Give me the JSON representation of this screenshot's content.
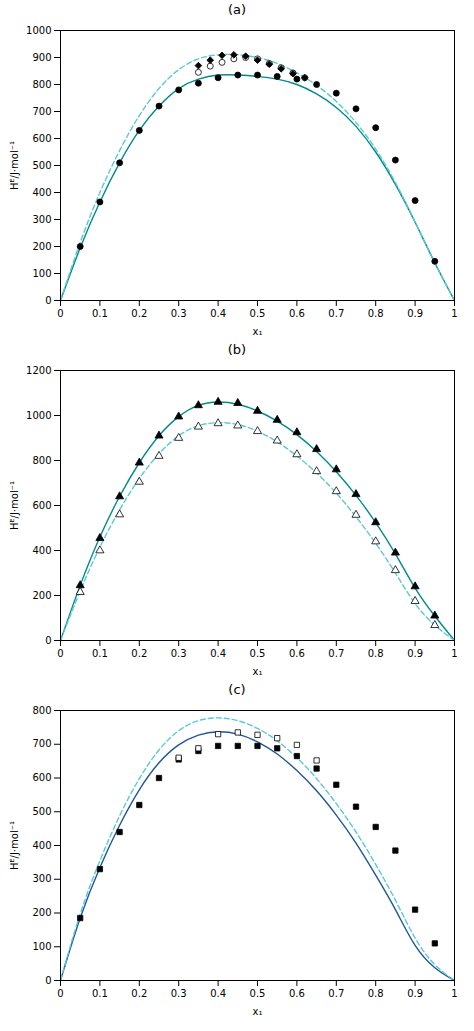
{
  "chart_data": [
    {
      "type": "line",
      "title": "(a)",
      "x_label": "x₁",
      "y_label": "Hᴱ/J·mol⁻¹",
      "xlim": [
        0,
        1
      ],
      "xticks": [
        0,
        0.1,
        0.2,
        0.3,
        0.4,
        0.5,
        0.6,
        0.7,
        0.8,
        0.9,
        1
      ],
      "ylim": [
        0,
        1000
      ],
      "yticks": [
        0,
        100,
        200,
        300,
        400,
        500,
        600,
        700,
        800,
        900,
        1000
      ],
      "series": [
        {
          "type": "line",
          "color": "#008B8B",
          "line_style": "solid",
          "x": [
            0,
            0.05,
            0.1,
            0.15,
            0.2,
            0.25,
            0.3,
            0.35,
            0.4,
            0.45,
            0.5,
            0.55,
            0.6,
            0.65,
            0.7,
            0.75,
            0.8,
            0.85,
            0.9,
            0.95,
            1.0
          ],
          "values": [
            0,
            195,
            365,
            510,
            630,
            720,
            785,
            820,
            835,
            835,
            830,
            820,
            800,
            765,
            715,
            645,
            550,
            430,
            290,
            140,
            0
          ]
        },
        {
          "type": "line",
          "color": "#5BC8D8",
          "line_style": "dashed",
          "x": [
            0,
            0.05,
            0.1,
            0.15,
            0.2,
            0.25,
            0.3,
            0.35,
            0.4,
            0.45,
            0.5,
            0.55,
            0.6,
            0.65,
            0.7,
            0.75,
            0.8,
            0.85,
            0.9,
            0.95,
            1.0
          ],
          "values": [
            0,
            215,
            400,
            555,
            685,
            785,
            855,
            895,
            910,
            910,
            900,
            878,
            843,
            797,
            737,
            659,
            561,
            437,
            291,
            139,
            0
          ]
        },
        {
          "type": "scatter",
          "color": "black",
          "marker": "circle",
          "x": [
            0.05,
            0.1,
            0.15,
            0.2,
            0.25,
            0.3,
            0.35,
            0.4,
            0.45,
            0.5,
            0.55,
            0.6,
            0.65,
            0.7,
            0.75,
            0.8,
            0.85,
            0.9,
            0.95
          ],
          "values": [
            200,
            365,
            510,
            630,
            720,
            780,
            805,
            825,
            835,
            835,
            830,
            820,
            800,
            768,
            710,
            640,
            520,
            370,
            145
          ]
        },
        {
          "type": "scatter",
          "color": "black",
          "marker": "circle-open",
          "x": [
            0.35,
            0.38,
            0.41,
            0.44,
            0.47,
            0.5,
            0.53,
            0.56,
            0.59,
            0.62
          ],
          "values": [
            845,
            868,
            882,
            895,
            900,
            895,
            878,
            862,
            843,
            825
          ]
        },
        {
          "type": "scatter",
          "color": "black",
          "marker": "diamond",
          "x": [
            0.35,
            0.38,
            0.41,
            0.44,
            0.47,
            0.5,
            0.53,
            0.56,
            0.59,
            0.62
          ],
          "values": [
            870,
            890,
            908,
            910,
            905,
            890,
            875,
            858,
            840,
            825
          ]
        }
      ]
    },
    {
      "type": "line",
      "title": "(b)",
      "x_label": "x₁",
      "y_label": "Hᴱ/J·mol⁻¹",
      "xlim": [
        0,
        1
      ],
      "xticks": [
        0,
        0.1,
        0.2,
        0.3,
        0.4,
        0.5,
        0.6,
        0.7,
        0.8,
        0.9,
        1
      ],
      "ylim": [
        0,
        1200
      ],
      "yticks": [
        0,
        200,
        400,
        600,
        800,
        1000,
        1200
      ],
      "series": [
        {
          "type": "line",
          "color": "#008B8B",
          "line_style": "solid",
          "x": [
            0,
            0.05,
            0.1,
            0.15,
            0.2,
            0.25,
            0.3,
            0.35,
            0.4,
            0.45,
            0.5,
            0.55,
            0.6,
            0.65,
            0.7,
            0.75,
            0.8,
            0.85,
            0.9,
            0.95,
            1.0
          ],
          "values": [
            0,
            245,
            460,
            640,
            790,
            910,
            995,
            1045,
            1060,
            1050,
            1020,
            975,
            915,
            840,
            750,
            645,
            524,
            385,
            233,
            109,
            0
          ]
        },
        {
          "type": "line",
          "color": "#5BC8D8",
          "line_style": "dashed",
          "x": [
            0,
            0.05,
            0.1,
            0.15,
            0.2,
            0.25,
            0.3,
            0.35,
            0.4,
            0.45,
            0.5,
            0.55,
            0.6,
            0.65,
            0.7,
            0.75,
            0.8,
            0.85,
            0.9,
            0.95,
            1.0
          ],
          "values": [
            0,
            220,
            415,
            580,
            720,
            830,
            910,
            955,
            968,
            960,
            930,
            883,
            820,
            745,
            655,
            550,
            432,
            300,
            164,
            68,
            0
          ]
        },
        {
          "type": "scatter",
          "color": "black",
          "marker": "triangle",
          "x": [
            0.05,
            0.1,
            0.15,
            0.2,
            0.25,
            0.3,
            0.35,
            0.4,
            0.45,
            0.5,
            0.55,
            0.6,
            0.65,
            0.7,
            0.75,
            0.8,
            0.85,
            0.9,
            0.95
          ],
          "values": [
            245,
            455,
            640,
            790,
            910,
            995,
            1045,
            1060,
            1055,
            1020,
            980,
            925,
            850,
            760,
            650,
            525,
            390,
            240,
            110
          ]
        },
        {
          "type": "scatter",
          "color": "black",
          "marker": "triangle-open",
          "x": [
            0.05,
            0.1,
            0.15,
            0.2,
            0.25,
            0.3,
            0.35,
            0.4,
            0.45,
            0.5,
            0.55,
            0.6,
            0.65,
            0.7,
            0.75,
            0.8,
            0.85,
            0.9,
            0.95
          ],
          "values": [
            215,
            400,
            560,
            705,
            820,
            900,
            950,
            965,
            955,
            930,
            888,
            827,
            752,
            663,
            558,
            440,
            312,
            175,
            68
          ]
        }
      ]
    },
    {
      "type": "line",
      "title": "(c)",
      "x_label": "x₁",
      "y_label": "Hᴱ/J·mol⁻¹",
      "xlim": [
        0,
        1
      ],
      "xticks": [
        0,
        0.1,
        0.2,
        0.3,
        0.4,
        0.5,
        0.6,
        0.7,
        0.8,
        0.9,
        1
      ],
      "ylim": [
        0,
        800
      ],
      "yticks": [
        0,
        100,
        200,
        300,
        400,
        500,
        600,
        700,
        800
      ],
      "series": [
        {
          "type": "line",
          "color": "#1E5799",
          "line_style": "solid",
          "x": [
            0,
            0.05,
            0.1,
            0.15,
            0.2,
            0.25,
            0.3,
            0.35,
            0.4,
            0.45,
            0.5,
            0.55,
            0.6,
            0.65,
            0.7,
            0.75,
            0.8,
            0.85,
            0.9,
            0.95,
            1.0
          ],
          "values": [
            0,
            185,
            335,
            460,
            565,
            645,
            698,
            727,
            737,
            730,
            707,
            671,
            622,
            562,
            490,
            407,
            312,
            210,
            104,
            38,
            0
          ]
        },
        {
          "type": "line",
          "color": "#5BC8D8",
          "line_style": "dashed",
          "x": [
            0,
            0.05,
            0.1,
            0.15,
            0.2,
            0.25,
            0.3,
            0.35,
            0.4,
            0.45,
            0.5,
            0.55,
            0.6,
            0.65,
            0.7,
            0.75,
            0.8,
            0.85,
            0.9,
            0.95,
            1.0
          ],
          "values": [
            0,
            197,
            355,
            488,
            598,
            683,
            740,
            770,
            778,
            770,
            747,
            710,
            660,
            598,
            524,
            440,
            344,
            238,
            126,
            47,
            0
          ]
        },
        {
          "type": "scatter",
          "color": "black",
          "marker": "square",
          "x": [
            0.05,
            0.1,
            0.15,
            0.2,
            0.25,
            0.3,
            0.35,
            0.4,
            0.45,
            0.5,
            0.55,
            0.6,
            0.65,
            0.7,
            0.75,
            0.8,
            0.85,
            0.9,
            0.95
          ],
          "values": [
            185,
            330,
            440,
            520,
            600,
            655,
            680,
            695,
            695,
            695,
            688,
            665,
            628,
            580,
            515,
            455,
            385,
            210,
            110
          ]
        },
        {
          "type": "scatter",
          "color": "black",
          "marker": "square-open",
          "x": [
            0.3,
            0.35,
            0.4,
            0.45,
            0.5,
            0.55,
            0.6,
            0.65
          ],
          "values": [
            660,
            688,
            730,
            735,
            728,
            718,
            698,
            652
          ]
        }
      ]
    }
  ]
}
